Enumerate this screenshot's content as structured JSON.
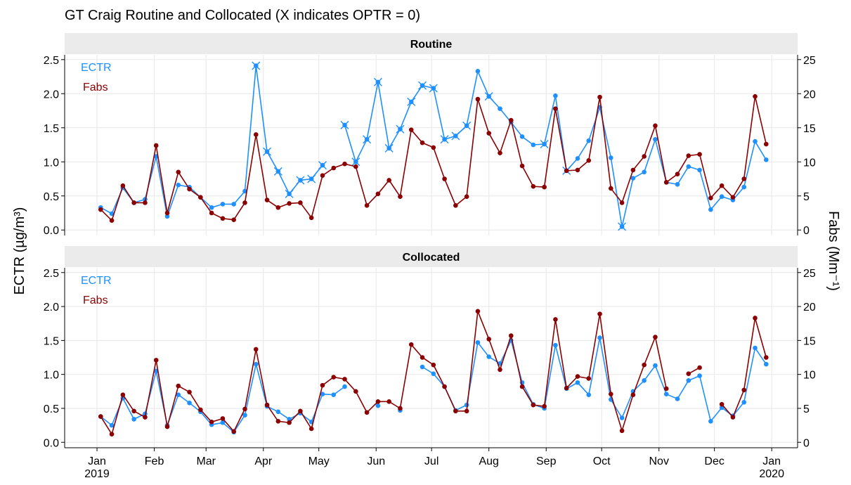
{
  "chart_data": {
    "type": "line",
    "title": "GT Craig Routine and Collocated (X indicates OPTR = 0)",
    "ylabel": "ECTR (µg/m³)",
    "y2label": "Fabs (Mm⁻¹)",
    "x": [
      2,
      8,
      14,
      20,
      26,
      32,
      38,
      44,
      50,
      56,
      62,
      68,
      74,
      80,
      86,
      92,
      98,
      104,
      110,
      116,
      122,
      128,
      134,
      140,
      146,
      152,
      158,
      164,
      170,
      176,
      182,
      188,
      194,
      200,
      206,
      212,
      218,
      224,
      230,
      236,
      242,
      248,
      254,
      260,
      266,
      272,
      278,
      284,
      290,
      296,
      302,
      308,
      314,
      320,
      326,
      332,
      338,
      344,
      350,
      356,
      362
    ],
    "xlim": [
      -17.5,
      379
    ],
    "xticks": [
      {
        "value": 0,
        "label": "Jan\n2019"
      },
      {
        "value": 31,
        "label": "Feb"
      },
      {
        "value": 59,
        "label": "Mar"
      },
      {
        "value": 90,
        "label": "Apr"
      },
      {
        "value": 120,
        "label": "May"
      },
      {
        "value": 151,
        "label": "Jun"
      },
      {
        "value": 181,
        "label": "Jul"
      },
      {
        "value": 212,
        "label": "Aug"
      },
      {
        "value": 243,
        "label": "Sep"
      },
      {
        "value": 273,
        "label": "Oct"
      },
      {
        "value": 304,
        "label": "Nov"
      },
      {
        "value": 334,
        "label": "Dec"
      },
      {
        "value": 365,
        "label": "Jan\n2020"
      }
    ],
    "ylim": [
      -0.08,
      2.57
    ],
    "yticks": [
      {
        "value": 0,
        "label": "0.0"
      },
      {
        "value": 0.5,
        "label": "0.5"
      },
      {
        "value": 1,
        "label": "1.0"
      },
      {
        "value": 1.5,
        "label": "1.5"
      },
      {
        "value": 2,
        "label": "2.0"
      },
      {
        "value": 2.5,
        "label": "2.5"
      }
    ],
    "y2lim": [
      -0.8,
      25.7
    ],
    "y2ticks": [
      0,
      5,
      10,
      15,
      20,
      25
    ],
    "grid": true,
    "panels": [
      {
        "title": "Routine",
        "series": [
          {
            "name": "ECTR",
            "color": "#1e90ff",
            "values": [
              0.33,
              0.24,
              0.62,
              0.4,
              0.45,
              1.08,
              0.2,
              0.66,
              0.63,
              0.48,
              0.33,
              0.38,
              0.38,
              0.57,
              2.41,
              1.15,
              0.86,
              0.53,
              0.73,
              0.75,
              0.95,
              null,
              1.54,
              1.0,
              1.33,
              2.17,
              1.2,
              1.48,
              1.88,
              2.12,
              2.08,
              1.33,
              1.38,
              1.53,
              2.33,
              1.96,
              1.78,
              1.58,
              1.37,
              1.25,
              1.26,
              1.97,
              0.87,
              1.05,
              1.31,
              1.8,
              1.06,
              0.05,
              0.76,
              0.85,
              1.33,
              0.7,
              0.67,
              0.93,
              0.88,
              0.3,
              0.49,
              0.44,
              0.63,
              1.3,
              1.03
            ],
            "optr_zero": [
              false,
              false,
              false,
              false,
              false,
              false,
              false,
              false,
              false,
              false,
              false,
              false,
              false,
              false,
              true,
              true,
              true,
              true,
              true,
              true,
              true,
              false,
              true,
              true,
              true,
              true,
              true,
              true,
              true,
              true,
              true,
              true,
              true,
              true,
              false,
              true,
              false,
              false,
              false,
              false,
              true,
              false,
              true,
              false,
              false,
              false,
              false,
              true,
              false,
              false,
              false,
              false,
              false,
              false,
              false,
              false,
              false,
              false,
              false,
              false,
              false
            ]
          },
          {
            "name": "Fabs",
            "color": "#8b0000",
            "axis": "y2",
            "values": [
              3.0,
              1.4,
              6.5,
              4.0,
              4.0,
              12.4,
              2.5,
              8.5,
              6.0,
              4.8,
              2.5,
              1.7,
              1.5,
              4.0,
              14.0,
              4.4,
              3.3,
              3.9,
              4.0,
              1.8,
              8.0,
              9.1,
              9.7,
              9.3,
              3.6,
              5.3,
              7.3,
              4.9,
              14.7,
              12.8,
              12.1,
              7.5,
              3.6,
              4.9,
              19.2,
              14.2,
              11.3,
              16.1,
              9.4,
              6.4,
              6.3,
              17.8,
              8.7,
              8.8,
              10.2,
              19.5,
              6.1,
              4.0,
              8.8,
              10.8,
              15.3,
              7.0,
              8.2,
              10.9,
              11.1,
              4.7,
              6.5,
              4.8,
              7.5,
              19.6,
              12.6
            ]
          }
        ]
      },
      {
        "title": "Collocated",
        "series": [
          {
            "name": "ECTR",
            "color": "#1e90ff",
            "values": [
              0.38,
              0.25,
              0.65,
              0.34,
              0.42,
              1.05,
              0.25,
              0.7,
              0.58,
              0.45,
              0.26,
              0.29,
              0.15,
              0.4,
              1.15,
              0.53,
              0.45,
              0.34,
              0.43,
              0.3,
              0.71,
              0.7,
              0.82,
              null,
              null,
              0.54,
              null,
              0.47,
              null,
              1.11,
              1.01,
              0.82,
              0.47,
              0.55,
              1.47,
              1.26,
              1.16,
              1.5,
              0.88,
              0.56,
              0.5,
              1.43,
              0.79,
              0.88,
              0.7,
              1.54,
              0.63,
              0.36,
              0.75,
              0.91,
              1.13,
              0.71,
              0.64,
              0.91,
              0.98,
              0.31,
              0.51,
              0.39,
              0.59,
              1.39,
              1.15
            ]
          },
          {
            "name": "Fabs",
            "color": "#8b0000",
            "axis": "y2",
            "values": [
              3.8,
              1.2,
              7.0,
              4.6,
              3.7,
              12.1,
              2.3,
              8.3,
              7.4,
              4.8,
              3.0,
              3.5,
              1.6,
              4.9,
              13.7,
              5.5,
              3.1,
              2.9,
              4.6,
              2.0,
              8.4,
              9.6,
              9.3,
              7.5,
              4.4,
              6.0,
              6.0,
              5.0,
              14.4,
              12.5,
              11.4,
              8.2,
              4.6,
              4.6,
              19.3,
              15.2,
              10.7,
              15.7,
              8.2,
              5.5,
              5.3,
              18.1,
              8.0,
              9.7,
              9.4,
              18.9,
              7.1,
              1.7,
              7.0,
              11.4,
              15.5,
              7.9,
              null,
              10.1,
              11.0,
              null,
              5.6,
              3.7,
              7.7,
              18.3,
              12.5
            ]
          }
        ]
      }
    ]
  }
}
